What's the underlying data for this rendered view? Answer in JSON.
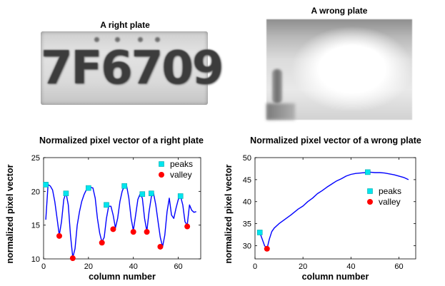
{
  "images": {
    "right_title": "A right plate",
    "right_plate_text": "7F6709",
    "wrong_title": "A wrong plate"
  },
  "chart_data": [
    {
      "type": "line",
      "title": "Normalized pixel vector of a right plate",
      "xlabel": "column number",
      "ylabel": "normalized pixel vector",
      "xlim": [
        0,
        70
      ],
      "ylim": [
        10,
        25
      ],
      "xticks": [
        0,
        20,
        40,
        60
      ],
      "yticks": [
        10,
        15,
        20,
        25
      ],
      "grid": false,
      "legend_position": "top-right",
      "series": [
        {
          "kind": "line",
          "color": "#0000ff",
          "x": [
            1,
            2,
            3,
            4,
            5,
            6,
            7,
            8,
            9,
            10,
            11,
            12,
            13,
            14,
            15,
            16,
            17,
            18,
            19,
            20,
            21,
            22,
            23,
            24,
            25,
            26,
            27,
            28,
            29,
            30,
            31,
            32,
            33,
            34,
            35,
            36,
            37,
            38,
            39,
            40,
            41,
            42,
            43,
            44,
            45,
            46,
            47,
            48,
            49,
            50,
            51,
            52,
            53,
            54,
            55,
            56,
            57,
            58,
            59,
            60,
            61,
            62,
            63,
            64,
            65,
            66,
            67,
            68
          ],
          "y": [
            15.8,
            21.0,
            20.8,
            20.2,
            18.5,
            16.0,
            13.5,
            15.5,
            18.8,
            19.8,
            18.0,
            13.5,
            10.2,
            11.5,
            15.0,
            17.0,
            18.5,
            19.5,
            20.2,
            20.6,
            20.6,
            20.5,
            19.0,
            16.0,
            13.8,
            12.5,
            13.2,
            16.0,
            17.8,
            17.8,
            16.5,
            14.6,
            16.0,
            18.5,
            20.0,
            20.8,
            20.8,
            19.0,
            16.0,
            14.2,
            16.5,
            18.8,
            19.6,
            19.0,
            16.0,
            14.1,
            17.0,
            19.2,
            19.7,
            18.0,
            15.5,
            13.2,
            11.8,
            13.5,
            17.0,
            19.0,
            16.5,
            16.0,
            17.5,
            18.8,
            19.3,
            18.0,
            15.5,
            15.0,
            18.0,
            17.2,
            16.9,
            17.0
          ]
        },
        {
          "kind": "points",
          "name": "peaks",
          "marker": "square",
          "color": "#00e5ee",
          "x": [
            1,
            10,
            20,
            28,
            36,
            44,
            48,
            61
          ],
          "y": [
            21.0,
            19.7,
            20.5,
            18.0,
            20.8,
            19.6,
            19.7,
            19.3
          ]
        },
        {
          "kind": "points",
          "name": "valley",
          "marker": "circle",
          "color": "#ff0000",
          "x": [
            7,
            13,
            26,
            31,
            40,
            46,
            52,
            64
          ],
          "y": [
            13.4,
            10.1,
            12.4,
            14.4,
            14.0,
            14.0,
            11.8,
            14.8
          ]
        }
      ]
    },
    {
      "type": "line",
      "title": "Normalized pixel vector of a wrong plate",
      "xlabel": "column number",
      "ylabel": "normalized pixel vector",
      "xlim": [
        0,
        67
      ],
      "ylim": [
        27,
        50
      ],
      "xticks": [
        0,
        20,
        40,
        60
      ],
      "yticks": [
        30,
        35,
        40,
        45,
        50
      ],
      "grid": false,
      "legend_position": "middle-right",
      "series": [
        {
          "kind": "line",
          "color": "#0000ff",
          "x": [
            2,
            3,
            4,
            5,
            6,
            7,
            8,
            10,
            12,
            15,
            18,
            20,
            22,
            24,
            26,
            28,
            30,
            32,
            34,
            36,
            38,
            40,
            42,
            44,
            46,
            48,
            50,
            52,
            54,
            56,
            58,
            60,
            62,
            64
          ],
          "y": [
            33.0,
            31.5,
            30.0,
            29.3,
            31.5,
            33.2,
            34.0,
            35.0,
            35.8,
            37.0,
            38.3,
            39.0,
            40.0,
            40.8,
            41.8,
            42.5,
            43.3,
            44.0,
            44.7,
            45.2,
            45.8,
            46.2,
            46.4,
            46.5,
            46.6,
            46.7,
            46.6,
            46.6,
            46.5,
            46.3,
            46.1,
            45.8,
            45.5,
            45.0
          ]
        },
        {
          "kind": "points",
          "name": "peaks",
          "marker": "square",
          "color": "#00e5ee",
          "x": [
            2,
            47
          ],
          "y": [
            33.0,
            46.7
          ]
        },
        {
          "kind": "points",
          "name": "valley",
          "marker": "circle",
          "color": "#ff0000",
          "x": [
            5
          ],
          "y": [
            29.3
          ]
        }
      ]
    }
  ]
}
